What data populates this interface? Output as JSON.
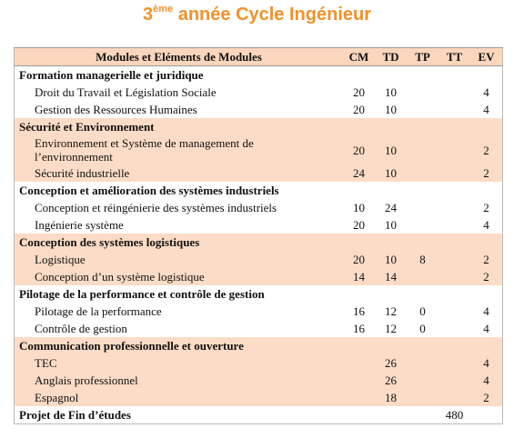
{
  "header": {
    "title": {
      "number": "3",
      "superscript": "ème",
      "text": "année Cycle Ingénieur"
    }
  },
  "table": {
    "columns": [
      "Modules et Eléments de Modules",
      "CM",
      "TD",
      "TP",
      "TT",
      "EV"
    ],
    "groups": [
      {
        "title": "Formation managerielle et juridique",
        "rows": [
          [
            "Droit du Travail et Législation Sociale",
            20,
            10,
            null,
            null,
            4
          ],
          [
            "Gestion des Ressources Humaines",
            20,
            10,
            null,
            null,
            4
          ]
        ]
      },
      {
        "title": "Sécurité  et Environnement",
        "rows": [
          [
            "Environnement et Système de management de l’environnement",
            20,
            10,
            null,
            null,
            2
          ],
          [
            "Sécurité industrielle",
            24,
            10,
            null,
            null,
            2
          ]
        ]
      },
      {
        "title": "Conception et amélioration des systèmes industriels",
        "rows": [
          [
            "Conception et réingénierie des systèmes industriels",
            10,
            24,
            null,
            null,
            2
          ],
          [
            "Ingénierie système",
            20,
            10,
            null,
            null,
            4
          ]
        ]
      },
      {
        "title": "Conception des systèmes logistiques",
        "rows": [
          [
            "Logistique",
            20,
            10,
            8,
            null,
            2
          ],
          [
            "Conception d’un système  logistique",
            14,
            14,
            null,
            null,
            2
          ]
        ]
      },
      {
        "title": "Pilotage de la performance et contrôle de gestion",
        "rows": [
          [
            "Pilotage de la performance",
            16,
            12,
            0,
            null,
            4
          ],
          [
            "Contrôle de gestion",
            16,
            12,
            0,
            null,
            4
          ]
        ]
      },
      {
        "title": "Communication professionnelle et ouverture",
        "rows": [
          [
            "TEC",
            null,
            26,
            null,
            null,
            4
          ],
          [
            "Anglais professionnel",
            null,
            26,
            null,
            null,
            4
          ],
          [
            "Espagnol",
            null,
            18,
            null,
            null,
            2
          ]
        ]
      }
    ],
    "footer": [
      "Projet de Fin d’études",
      null,
      null,
      null,
      480,
      null
    ]
  }
}
